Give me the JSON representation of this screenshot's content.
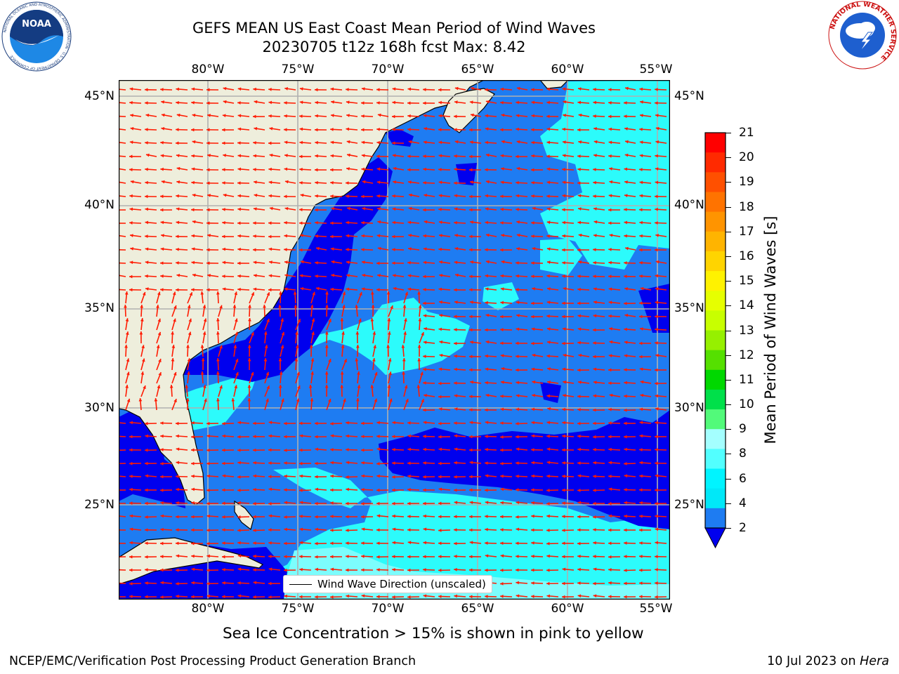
{
  "title": {
    "line1": "GEFS MEAN US East Coast Mean Period of Wind Waves",
    "line2": "20230705 t12z 168h fcst   Max: 8.42"
  },
  "map": {
    "lon_ticks": [
      "80°W",
      "75°W",
      "70°W",
      "65°W",
      "60°W",
      "55°W"
    ],
    "lat_ticks": [
      "45°N",
      "40°N",
      "35°N",
      "30°N",
      "25°N"
    ],
    "legend_label": "Wind Wave Direction (unscaled)",
    "colors": {
      "land": "#eeeedc",
      "ocean_dark": "#0000ee",
      "ocean_blue": "#1e7cf2",
      "ocean_cyan": "#00ffff",
      "ocean_lightcyan": "#48fcfc",
      "arrow": "#ff1a00"
    }
  },
  "colorbar": {
    "title": "Mean Period of Wind Waves [s]",
    "ticks": [
      "21",
      "20",
      "19",
      "18",
      "17",
      "16",
      "15",
      "14",
      "13",
      "12",
      "11",
      "10",
      "9",
      "8",
      "6",
      "4",
      "2"
    ],
    "colors": [
      "#ff0000",
      "#ff2a00",
      "#ff5000",
      "#ff7300",
      "#ff9400",
      "#ffb400",
      "#ffd400",
      "#fff200",
      "#e6ff00",
      "#c8ff00",
      "#96f000",
      "#55e000",
      "#00d800",
      "#00e04a",
      "#52fa7a",
      "#a4ffff",
      "#52ffff",
      "#00f4ff",
      "#00e8f8",
      "#1e7cf2"
    ],
    "extend_color": "#0000ee"
  },
  "note": "Sea Ice Concentration > 15% is shown in pink to yellow",
  "footer": {
    "left": "NCEP/EMC/Verification Post Processing Product Generation Branch",
    "date": "10 Jul 2023 on",
    "system": "Hera"
  },
  "logos": {
    "noaa_text": "NOAA",
    "noaa_ring": "NATIONAL OCEANIC AND ATMOSPHERIC ADMINISTRATION · U.S. DEPARTMENT OF COMMERCE",
    "nws_ring": "NATIONAL WEATHER SERVICE"
  }
}
